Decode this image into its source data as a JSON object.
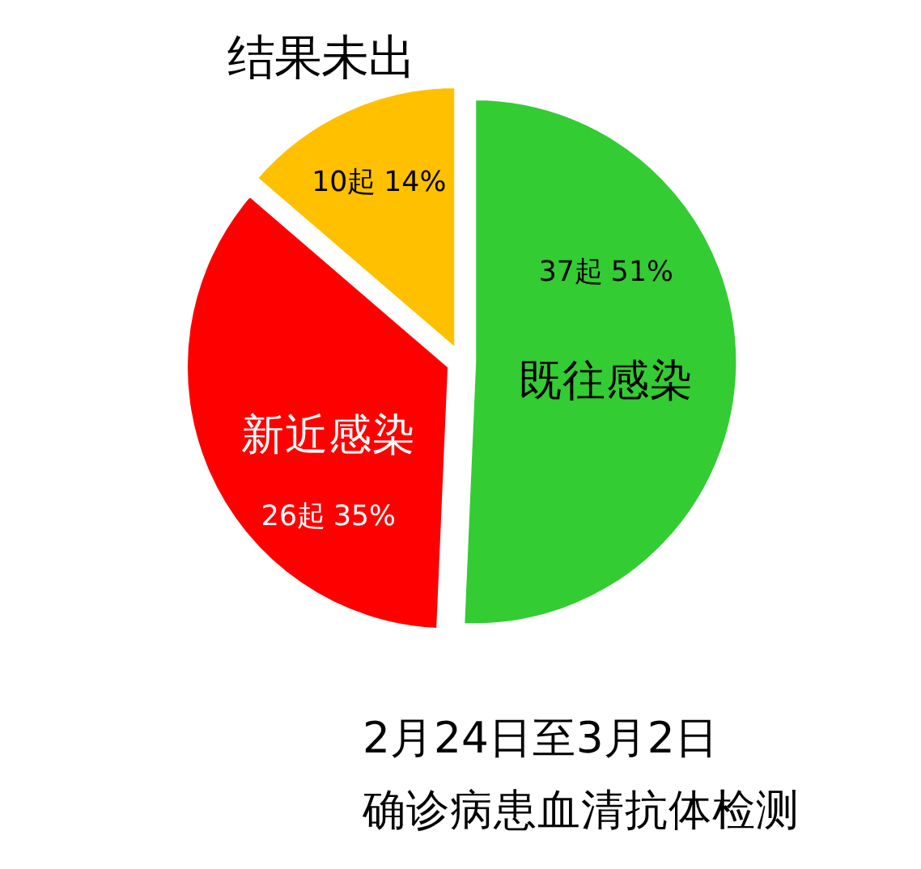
{
  "chart_data": {
    "type": "pie",
    "title": "2月24日至3月2日",
    "subtitle": "确诊病患血清抗体检测",
    "categories": [
      "既往感染",
      "新近感染",
      "结果未出"
    ],
    "values": [
      37,
      26,
      10
    ],
    "colors": [
      "#33cc33",
      "#ff0000",
      "#ffc000"
    ],
    "value_labels": [
      "37起 51%",
      "26起 35%",
      "10起 14%"
    ]
  }
}
